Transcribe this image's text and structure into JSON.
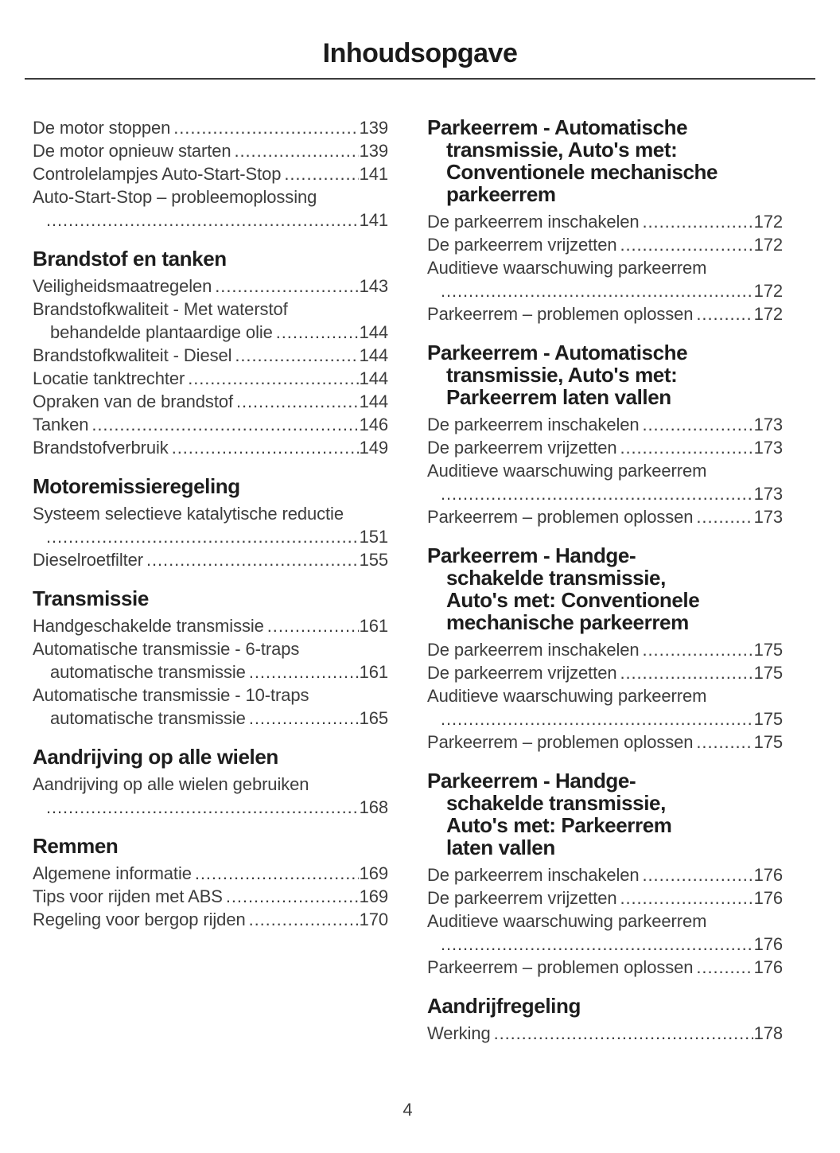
{
  "page_title": "Inhoudsopgave",
  "page_number": "4",
  "colors": {
    "heading_text": "#1d1d1d",
    "body_text": "#3d3d3d",
    "divider": "#3c3c3c",
    "background": "#ffffff"
  },
  "columns": [
    {
      "sections": [
        {
          "heading_lines": [],
          "entries": [
            {
              "lines": [
                "De motor stoppen"
              ],
              "page": "139"
            },
            {
              "lines": [
                "De motor opnieuw starten"
              ],
              "page": "139"
            },
            {
              "lines": [
                "Controlelampjes Auto-Start-Stop"
              ],
              "page": "141"
            },
            {
              "lines": [
                "Auto-Start-Stop – probleemoplossing",
                ""
              ],
              "page": "141"
            }
          ]
        },
        {
          "heading_lines": [
            "Brandstof en tanken"
          ],
          "entries": [
            {
              "lines": [
                "Veiligheidsmaatregelen"
              ],
              "page": "143"
            },
            {
              "lines": [
                "Brandstofkwaliteit - Met waterstof",
                "behandelde plantaardige olie"
              ],
              "page": "144"
            },
            {
              "lines": [
                "Brandstofkwaliteit - Diesel"
              ],
              "page": "144"
            },
            {
              "lines": [
                "Locatie tanktrechter"
              ],
              "page": "144"
            },
            {
              "lines": [
                "Opraken van de brandstof"
              ],
              "page": "144"
            },
            {
              "lines": [
                "Tanken"
              ],
              "page": "146"
            },
            {
              "lines": [
                "Brandstofverbruik"
              ],
              "page": "149"
            }
          ]
        },
        {
          "heading_lines": [
            "Motoremissieregeling"
          ],
          "entries": [
            {
              "lines": [
                "Systeem selectieve katalytische reductie",
                ""
              ],
              "page": "151"
            },
            {
              "lines": [
                "Dieselroetfilter"
              ],
              "page": "155"
            }
          ]
        },
        {
          "heading_lines": [
            "Transmissie"
          ],
          "entries": [
            {
              "lines": [
                "Handgeschakelde transmissie"
              ],
              "page": "161"
            },
            {
              "lines": [
                "Automatische transmissie - 6-traps",
                "automatische transmissie"
              ],
              "page": "161"
            },
            {
              "lines": [
                "Automatische transmissie - 10-traps",
                "automatische transmissie"
              ],
              "page": "165"
            }
          ]
        },
        {
          "heading_lines": [
            "Aandrijving op alle wielen"
          ],
          "entries": [
            {
              "lines": [
                "Aandrijving op alle wielen gebruiken",
                ""
              ],
              "page": "168"
            }
          ]
        },
        {
          "heading_lines": [
            "Remmen"
          ],
          "entries": [
            {
              "lines": [
                "Algemene informatie"
              ],
              "page": "169"
            },
            {
              "lines": [
                "Tips voor rijden met ABS"
              ],
              "page": "169"
            },
            {
              "lines": [
                "Regeling voor bergop rijden"
              ],
              "page": "170"
            }
          ]
        }
      ]
    },
    {
      "sections": [
        {
          "heading_lines": [
            "Parkeerrem - Automatische",
            "transmissie, Auto's met:",
            "Conventionele mechanische",
            "parkeerrem"
          ],
          "entries": [
            {
              "lines": [
                "De parkeerrem inschakelen"
              ],
              "page": "172"
            },
            {
              "lines": [
                "De parkeerrem vrijzetten"
              ],
              "page": "172"
            },
            {
              "lines": [
                "Auditieve waarschuwing parkeerrem",
                ""
              ],
              "page": "172"
            },
            {
              "lines": [
                "Parkeerrem – problemen oplossen"
              ],
              "page": "172"
            }
          ]
        },
        {
          "heading_lines": [
            "Parkeerrem - Automatische",
            "transmissie, Auto's met:",
            "Parkeerrem laten vallen"
          ],
          "entries": [
            {
              "lines": [
                "De parkeerrem inschakelen"
              ],
              "page": "173"
            },
            {
              "lines": [
                "De parkeerrem vrijzetten"
              ],
              "page": "173"
            },
            {
              "lines": [
                "Auditieve waarschuwing parkeerrem",
                ""
              ],
              "page": "173"
            },
            {
              "lines": [
                "Parkeerrem – problemen oplossen"
              ],
              "page": "173"
            }
          ]
        },
        {
          "heading_lines": [
            "Parkeerrem - Handge-",
            "schakelde transmissie,",
            "Auto's met: Conventionele",
            "mechanische parkeerrem"
          ],
          "entries": [
            {
              "lines": [
                "De parkeerrem inschakelen"
              ],
              "page": "175"
            },
            {
              "lines": [
                "De parkeerrem vrijzetten"
              ],
              "page": "175"
            },
            {
              "lines": [
                "Auditieve waarschuwing parkeerrem",
                ""
              ],
              "page": "175"
            },
            {
              "lines": [
                "Parkeerrem – problemen oplossen"
              ],
              "page": "175"
            }
          ]
        },
        {
          "heading_lines": [
            "Parkeerrem - Handge-",
            "schakelde transmissie,",
            "Auto's met: Parkeerrem",
            "laten vallen"
          ],
          "entries": [
            {
              "lines": [
                "De parkeerrem inschakelen"
              ],
              "page": "176"
            },
            {
              "lines": [
                "De parkeerrem vrijzetten"
              ],
              "page": "176"
            },
            {
              "lines": [
                "Auditieve waarschuwing parkeerrem",
                ""
              ],
              "page": "176"
            },
            {
              "lines": [
                "Parkeerrem – problemen oplossen"
              ],
              "page": "176"
            }
          ]
        },
        {
          "heading_lines": [
            "Aandrijfregeling"
          ],
          "entries": [
            {
              "lines": [
                "Werking"
              ],
              "page": "178"
            }
          ]
        }
      ]
    }
  ]
}
